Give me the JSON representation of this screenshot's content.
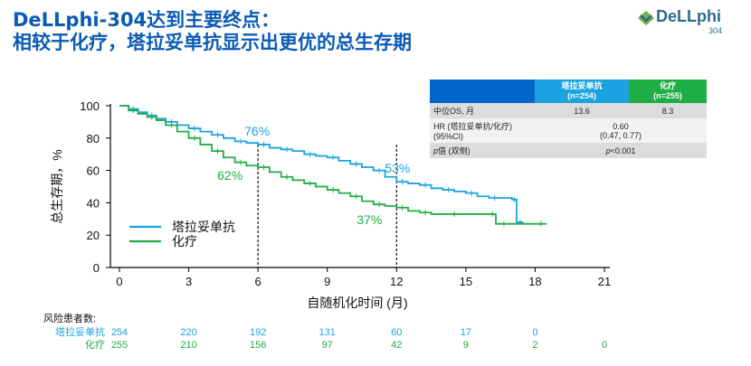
{
  "title": {
    "line1": "DeLLphi-304达到主要终点：",
    "line2": "相较于化疗，塔拉妥单抗显示出更优的总生存期"
  },
  "logo": {
    "name": "DeLLphi",
    "sub": "304",
    "icon": "diamond-chevron-icon"
  },
  "colors": {
    "title": "#0a5bb5",
    "series_a": "#1aa3e0",
    "series_b": "#1fae45",
    "header_blue": "#0066cc"
  },
  "stats_table": {
    "headers": [
      "",
      "塔拉妥单抗\n(n=254)",
      "化疗\n(n=255)"
    ],
    "rows": [
      {
        "label": "中位OS, 月",
        "a": "13.6",
        "b": "8.3"
      },
      {
        "label": "HR (塔拉妥单抗/化疗)\n(95%CI)",
        "span": "0.60\n(0.47, 0.77)"
      },
      {
        "label_prefix": "p",
        "label_suffix": "值 (双侧)",
        "span_prefix": "p",
        "span_suffix": "<0.001"
      }
    ]
  },
  "chart_data": {
    "type": "line",
    "xlabel": "自随机化时间 (月)",
    "ylabel": "总生存期，%",
    "xlim": [
      0,
      21
    ],
    "ylim": [
      0,
      100
    ],
    "xticks": [
      0,
      3,
      6,
      9,
      12,
      15,
      18,
      21
    ],
    "yticks": [
      0,
      20,
      40,
      60,
      80,
      100
    ],
    "legend_position": "bottom-left",
    "series": [
      {
        "name": "塔拉妥单抗",
        "color": "#1aa3e0",
        "x": [
          0,
          0.4,
          0.8,
          1.2,
          1.6,
          2.0,
          2.5,
          3.0,
          3.5,
          4.0,
          4.5,
          5.0,
          5.5,
          6.0,
          6.5,
          7.0,
          7.5,
          8.0,
          8.5,
          9.0,
          9.5,
          10.0,
          10.5,
          11.0,
          11.5,
          12.0,
          12.5,
          13.0,
          13.5,
          14.0,
          14.5,
          15.0,
          15.5,
          16.0,
          16.5,
          17.0,
          17.2,
          17.2,
          17.5
        ],
        "y": [
          100,
          98,
          96,
          94,
          92,
          90,
          88,
          86,
          84,
          82,
          80,
          78,
          77,
          76,
          74,
          73,
          72,
          70,
          69,
          68,
          66,
          64,
          62,
          60,
          56,
          53,
          52,
          51,
          49,
          48,
          47,
          46,
          44,
          43,
          43,
          42,
          42,
          28,
          28
        ]
      },
      {
        "name": "化疗",
        "color": "#1fae45",
        "x": [
          0,
          0.4,
          0.8,
          1.2,
          1.6,
          2.0,
          2.5,
          3.0,
          3.5,
          4.0,
          4.5,
          5.0,
          5.5,
          6.0,
          6.5,
          7.0,
          7.5,
          8.0,
          8.5,
          9.0,
          9.5,
          10.0,
          10.5,
          11.0,
          11.5,
          12.0,
          12.5,
          13.0,
          13.5,
          14.0,
          15.0,
          16.0,
          16.3,
          16.3,
          17.0,
          18.0,
          18.5
        ],
        "y": [
          100,
          97,
          95,
          93,
          91,
          88,
          84,
          80,
          76,
          72,
          68,
          65,
          63,
          62,
          59,
          56,
          54,
          52,
          50,
          48,
          46,
          44,
          41,
          39,
          38,
          37,
          35,
          34,
          33,
          33,
          33,
          33,
          33,
          27,
          27,
          27,
          27
        ]
      }
    ],
    "annotations": [
      {
        "text": "76%",
        "x": 6,
        "y": 76,
        "series": 0
      },
      {
        "text": "62%",
        "x": 6,
        "y": 62,
        "series": 1
      },
      {
        "text": "53%",
        "x": 12,
        "y": 53,
        "series": 0
      },
      {
        "text": "37%",
        "x": 12,
        "y": 37,
        "series": 1
      }
    ],
    "reference_lines": [
      {
        "x": 6
      },
      {
        "x": 12
      }
    ],
    "risk_table": {
      "label": "风险患者数:",
      "times": [
        0,
        3,
        6,
        9,
        12,
        15,
        18,
        21
      ],
      "rows": [
        {
          "name": "塔拉妥单抗",
          "color": "#1aa3e0",
          "values": [
            "254",
            "220",
            "192",
            "131",
            "60",
            "17",
            "0",
            ""
          ]
        },
        {
          "name": "化疗",
          "color": "#1fae45",
          "values": [
            "255",
            "210",
            "156",
            "97",
            "42",
            "9",
            "2",
            "0"
          ]
        }
      ]
    }
  }
}
